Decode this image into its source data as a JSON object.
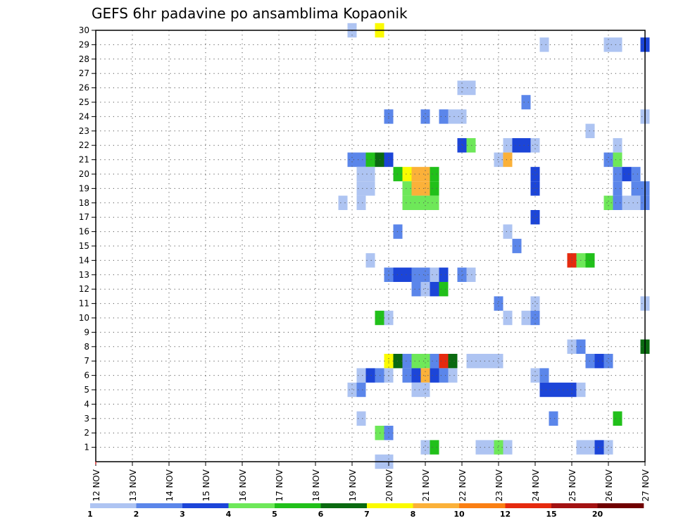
{
  "chart_data": {
    "type": "heatmap",
    "title": "GEFS 6hr padavine po ansamblima Kopaonik",
    "xlabel": "",
    "ylabel": "",
    "x_ticks": [
      "12 NOV",
      "13 NOV",
      "14 NOV",
      "15 NOV",
      "16 NOV",
      "17 NOV",
      "18 NOV",
      "19 NOV",
      "20 NOV",
      "21 NOV",
      "22 NOV",
      "23 NOV",
      "24 NOV",
      "25 NOV",
      "26 NOV",
      "27 NOV"
    ],
    "x_range": [
      0,
      60
    ],
    "x_step": "6hr",
    "y_ticks": [
      "1",
      "2",
      "3",
      "4",
      "5",
      "6",
      "7",
      "8",
      "9",
      "10",
      "11",
      "12",
      "13",
      "14",
      "15",
      "16",
      "17",
      "18",
      "19",
      "20",
      "21",
      "22",
      "23",
      "24",
      "25",
      "26",
      "27",
      "28",
      "29",
      "30"
    ],
    "y_range": [
      0,
      30
    ],
    "grid": true,
    "legend": {
      "placement": "bottom",
      "labels": [
        "1",
        "2",
        "3",
        "4",
        "5",
        "6",
        "7",
        "8",
        "10",
        "12",
        "15",
        "20"
      ],
      "colors": [
        "#aec4f2",
        "#5b86ea",
        "#1c45d8",
        "#6ee859",
        "#21c01a",
        "#0a6a10",
        "#fbfb00",
        "#fbb139",
        "#fa7f13",
        "#e52a0e",
        "#a31212",
        "#700000"
      ]
    },
    "cells": [
      {
        "x": 28,
        "y": 30,
        "c": 1
      },
      {
        "x": 31,
        "y": 30,
        "c": 7
      },
      {
        "x": 49,
        "y": 29,
        "c": 1
      },
      {
        "x": 56,
        "y": 29,
        "c": 1
      },
      {
        "x": 57,
        "y": 29,
        "c": 1
      },
      {
        "x": 60,
        "y": 29,
        "c": 3
      },
      {
        "x": 40,
        "y": 26,
        "c": 1
      },
      {
        "x": 41,
        "y": 26,
        "c": 1
      },
      {
        "x": 47,
        "y": 25,
        "c": 2
      },
      {
        "x": 32,
        "y": 24,
        "c": 2
      },
      {
        "x": 36,
        "y": 24,
        "c": 2
      },
      {
        "x": 38,
        "y": 24,
        "c": 2
      },
      {
        "x": 39,
        "y": 24,
        "c": 1
      },
      {
        "x": 40,
        "y": 24,
        "c": 1
      },
      {
        "x": 60,
        "y": 24,
        "c": 1
      },
      {
        "x": 54,
        "y": 23,
        "c": 1
      },
      {
        "x": 40,
        "y": 22,
        "c": 3
      },
      {
        "x": 41,
        "y": 22,
        "c": 4
      },
      {
        "x": 45,
        "y": 22,
        "c": 1
      },
      {
        "x": 46,
        "y": 22,
        "c": 3
      },
      {
        "x": 47,
        "y": 22,
        "c": 3
      },
      {
        "x": 48,
        "y": 22,
        "c": 1
      },
      {
        "x": 57,
        "y": 22,
        "c": 1
      },
      {
        "x": 28,
        "y": 21,
        "c": 2
      },
      {
        "x": 29,
        "y": 21,
        "c": 2
      },
      {
        "x": 30,
        "y": 21,
        "c": 5
      },
      {
        "x": 31,
        "y": 21,
        "c": 6
      },
      {
        "x": 32,
        "y": 21,
        "c": 3
      },
      {
        "x": 44,
        "y": 21,
        "c": 1
      },
      {
        "x": 45,
        "y": 21,
        "c": 8
      },
      {
        "x": 56,
        "y": 21,
        "c": 2
      },
      {
        "x": 57,
        "y": 21,
        "c": 4
      },
      {
        "x": 29,
        "y": 20,
        "c": 1
      },
      {
        "x": 30,
        "y": 20,
        "c": 1
      },
      {
        "x": 33,
        "y": 20,
        "c": 5
      },
      {
        "x": 34,
        "y": 20,
        "c": 7
      },
      {
        "x": 35,
        "y": 20,
        "c": 8
      },
      {
        "x": 36,
        "y": 20,
        "c": 8
      },
      {
        "x": 37,
        "y": 20,
        "c": 5
      },
      {
        "x": 48,
        "y": 20,
        "c": 3
      },
      {
        "x": 57,
        "y": 20,
        "c": 2
      },
      {
        "x": 58,
        "y": 20,
        "c": 3
      },
      {
        "x": 59,
        "y": 20,
        "c": 2
      },
      {
        "x": 29,
        "y": 19,
        "c": 1
      },
      {
        "x": 30,
        "y": 19,
        "c": 1
      },
      {
        "x": 34,
        "y": 19,
        "c": 4
      },
      {
        "x": 35,
        "y": 19,
        "c": 8
      },
      {
        "x": 36,
        "y": 19,
        "c": 8
      },
      {
        "x": 37,
        "y": 19,
        "c": 5
      },
      {
        "x": 48,
        "y": 19,
        "c": 3
      },
      {
        "x": 57,
        "y": 19,
        "c": 2
      },
      {
        "x": 59,
        "y": 19,
        "c": 2
      },
      {
        "x": 60,
        "y": 19,
        "c": 2
      },
      {
        "x": 27,
        "y": 18,
        "c": 1
      },
      {
        "x": 29,
        "y": 18,
        "c": 1
      },
      {
        "x": 34,
        "y": 18,
        "c": 4
      },
      {
        "x": 35,
        "y": 18,
        "c": 4
      },
      {
        "x": 36,
        "y": 18,
        "c": 4
      },
      {
        "x": 37,
        "y": 18,
        "c": 4
      },
      {
        "x": 56,
        "y": 18,
        "c": 4
      },
      {
        "x": 57,
        "y": 18,
        "c": 2
      },
      {
        "x": 58,
        "y": 18,
        "c": 1
      },
      {
        "x": 59,
        "y": 18,
        "c": 1
      },
      {
        "x": 60,
        "y": 18,
        "c": 2
      },
      {
        "x": 48,
        "y": 17,
        "c": 3
      },
      {
        "x": 33,
        "y": 16,
        "c": 2
      },
      {
        "x": 45,
        "y": 16,
        "c": 1
      },
      {
        "x": 46,
        "y": 15,
        "c": 2
      },
      {
        "x": 30,
        "y": 14,
        "c": 1
      },
      {
        "x": 52,
        "y": 14,
        "c": 10
      },
      {
        "x": 53,
        "y": 14,
        "c": 4
      },
      {
        "x": 54,
        "y": 14,
        "c": 5
      },
      {
        "x": 32,
        "y": 13,
        "c": 2
      },
      {
        "x": 33,
        "y": 13,
        "c": 3
      },
      {
        "x": 34,
        "y": 13,
        "c": 3
      },
      {
        "x": 35,
        "y": 13,
        "c": 2
      },
      {
        "x": 36,
        "y": 13,
        "c": 2
      },
      {
        "x": 37,
        "y": 13,
        "c": 1
      },
      {
        "x": 38,
        "y": 13,
        "c": 3
      },
      {
        "x": 40,
        "y": 13,
        "c": 2
      },
      {
        "x": 41,
        "y": 13,
        "c": 1
      },
      {
        "x": 35,
        "y": 12,
        "c": 2
      },
      {
        "x": 36,
        "y": 12,
        "c": 1
      },
      {
        "x": 37,
        "y": 12,
        "c": 3
      },
      {
        "x": 38,
        "y": 12,
        "c": 5
      },
      {
        "x": 44,
        "y": 11,
        "c": 2
      },
      {
        "x": 48,
        "y": 11,
        "c": 1
      },
      {
        "x": 60,
        "y": 11,
        "c": 1
      },
      {
        "x": 31,
        "y": 10,
        "c": 5
      },
      {
        "x": 32,
        "y": 10,
        "c": 1
      },
      {
        "x": 45,
        "y": 10,
        "c": 1
      },
      {
        "x": 47,
        "y": 10,
        "c": 1
      },
      {
        "x": 48,
        "y": 10,
        "c": 2
      },
      {
        "x": 52,
        "y": 8,
        "c": 1
      },
      {
        "x": 53,
        "y": 8,
        "c": 2
      },
      {
        "x": 60,
        "y": 8,
        "c": 6
      },
      {
        "x": 32,
        "y": 7,
        "c": 7
      },
      {
        "x": 33,
        "y": 7,
        "c": 6
      },
      {
        "x": 34,
        "y": 7,
        "c": 2
      },
      {
        "x": 35,
        "y": 7,
        "c": 4
      },
      {
        "x": 36,
        "y": 7,
        "c": 4
      },
      {
        "x": 37,
        "y": 7,
        "c": 2
      },
      {
        "x": 38,
        "y": 7,
        "c": 10
      },
      {
        "x": 39,
        "y": 7,
        "c": 6
      },
      {
        "x": 41,
        "y": 7,
        "c": 1
      },
      {
        "x": 42,
        "y": 7,
        "c": 1
      },
      {
        "x": 43,
        "y": 7,
        "c": 1
      },
      {
        "x": 44,
        "y": 7,
        "c": 1
      },
      {
        "x": 54,
        "y": 7,
        "c": 2
      },
      {
        "x": 55,
        "y": 7,
        "c": 3
      },
      {
        "x": 56,
        "y": 7,
        "c": 2
      },
      {
        "x": 29,
        "y": 6,
        "c": 1
      },
      {
        "x": 30,
        "y": 6,
        "c": 3
      },
      {
        "x": 31,
        "y": 6,
        "c": 2
      },
      {
        "x": 32,
        "y": 6,
        "c": 1
      },
      {
        "x": 34,
        "y": 6,
        "c": 2
      },
      {
        "x": 35,
        "y": 6,
        "c": 3
      },
      {
        "x": 36,
        "y": 6,
        "c": 8
      },
      {
        "x": 37,
        "y": 6,
        "c": 3
      },
      {
        "x": 38,
        "y": 6,
        "c": 2
      },
      {
        "x": 39,
        "y": 6,
        "c": 1
      },
      {
        "x": 48,
        "y": 6,
        "c": 1
      },
      {
        "x": 49,
        "y": 6,
        "c": 2
      },
      {
        "x": 28,
        "y": 5,
        "c": 1
      },
      {
        "x": 29,
        "y": 5,
        "c": 2
      },
      {
        "x": 35,
        "y": 5,
        "c": 1
      },
      {
        "x": 36,
        "y": 5,
        "c": 1
      },
      {
        "x": 49,
        "y": 5,
        "c": 3
      },
      {
        "x": 50,
        "y": 5,
        "c": 3
      },
      {
        "x": 51,
        "y": 5,
        "c": 3
      },
      {
        "x": 52,
        "y": 5,
        "c": 3
      },
      {
        "x": 53,
        "y": 5,
        "c": 1
      },
      {
        "x": 29,
        "y": 3,
        "c": 1
      },
      {
        "x": 50,
        "y": 3,
        "c": 2
      },
      {
        "x": 57,
        "y": 3,
        "c": 5
      },
      {
        "x": 31,
        "y": 2,
        "c": 4
      },
      {
        "x": 32,
        "y": 2,
        "c": 2
      },
      {
        "x": 36,
        "y": 1,
        "c": 1
      },
      {
        "x": 37,
        "y": 1,
        "c": 5
      },
      {
        "x": 42,
        "y": 1,
        "c": 1
      },
      {
        "x": 43,
        "y": 1,
        "c": 1
      },
      {
        "x": 44,
        "y": 1,
        "c": 4
      },
      {
        "x": 45,
        "y": 1,
        "c": 1
      },
      {
        "x": 53,
        "y": 1,
        "c": 1
      },
      {
        "x": 54,
        "y": 1,
        "c": 1
      },
      {
        "x": 55,
        "y": 1,
        "c": 3
      },
      {
        "x": 56,
        "y": 1,
        "c": 1
      },
      {
        "x": 31,
        "y": 0,
        "c": 1
      },
      {
        "x": 32,
        "y": 0,
        "c": 1
      }
    ]
  }
}
